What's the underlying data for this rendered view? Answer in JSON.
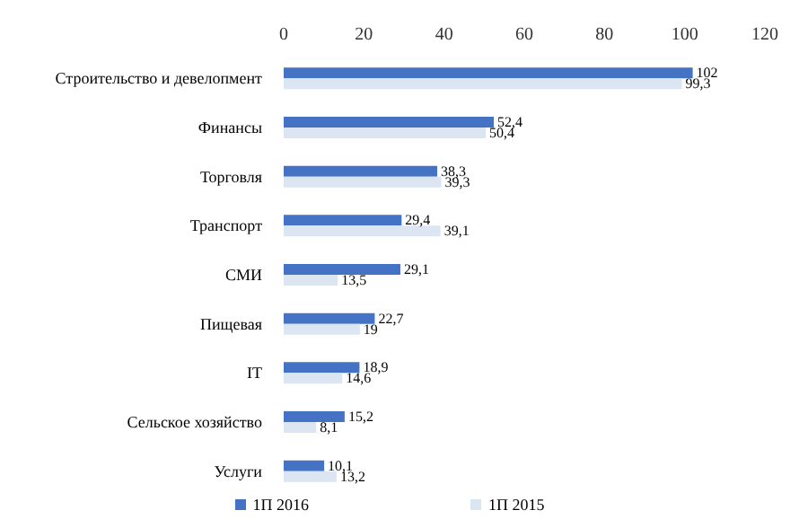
{
  "chart_data": {
    "type": "bar",
    "orientation": "horizontal",
    "categories": [
      "Строительство и девелопмент",
      "Финансы",
      "Торговля",
      "Транспорт",
      "СМИ",
      "Пищевая",
      "IT",
      "Сельское хозяйство",
      "Услуги"
    ],
    "series": [
      {
        "name": "1П 2016",
        "color": "#4472c4",
        "values": [
          102,
          52.4,
          38.3,
          29.4,
          29.1,
          22.7,
          18.9,
          15.2,
          10.1
        ],
        "value_labels": [
          "102",
          "52,4",
          "38,3",
          "29,4",
          "29,1",
          "22,7",
          "18,9",
          "15,2",
          "10,1"
        ]
      },
      {
        "name": "1П 2015",
        "color": "#dce6f2",
        "values": [
          99.3,
          50.4,
          39.3,
          39.1,
          13.5,
          19,
          14.6,
          8.1,
          13.2
        ],
        "value_labels": [
          "99,3",
          "50,4",
          "39,3",
          "39,1",
          "13,5",
          "19",
          "14,6",
          "8,1",
          "13,2"
        ]
      }
    ],
    "xlim": [
      0,
      120
    ],
    "xticks": [
      0,
      20,
      40,
      60,
      80,
      100,
      120
    ],
    "grid": false,
    "legend": "bottom"
  }
}
